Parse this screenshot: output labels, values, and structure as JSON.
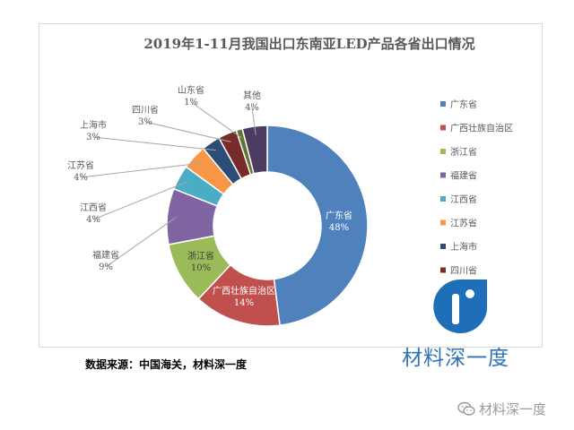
{
  "chart_data": {
    "type": "pie",
    "donut": true,
    "title": "2019年1-11月我国出口东南亚LED产品各省出口情况",
    "unit": "%",
    "legend_position": "right",
    "slices": [
      {
        "name": "广东省",
        "value": 48,
        "color": "#4f81bd"
      },
      {
        "name": "广西壮族自治区",
        "value": 14,
        "color": "#c0504d"
      },
      {
        "name": "浙江省",
        "value": 10,
        "color": "#9bbb59"
      },
      {
        "name": "福建省",
        "value": 9,
        "color": "#8064a2"
      },
      {
        "name": "江西省",
        "value": 4,
        "color": "#4bacc6"
      },
      {
        "name": "江苏省",
        "value": 4,
        "color": "#f79646"
      },
      {
        "name": "上海市",
        "value": 3,
        "color": "#2c4d75"
      },
      {
        "name": "四川省",
        "value": 3,
        "color": "#772c2a"
      },
      {
        "name": "山东省",
        "value": 1,
        "color": "#5f7530"
      },
      {
        "name": "其他",
        "value": 4,
        "color": "#4d3b62"
      }
    ],
    "legend_entries": [
      "广东省",
      "广西壮族自治区",
      "浙江省",
      "福建省",
      "江西省",
      "江苏省",
      "上海市",
      "四川省"
    ]
  },
  "source_note": "数据来源：中国海关，材料深一度",
  "brand": {
    "text": "材料深一度",
    "logo_text": "材料深一度"
  },
  "watermark": {
    "text": "材料深一度",
    "icon": "wechat-icon"
  }
}
